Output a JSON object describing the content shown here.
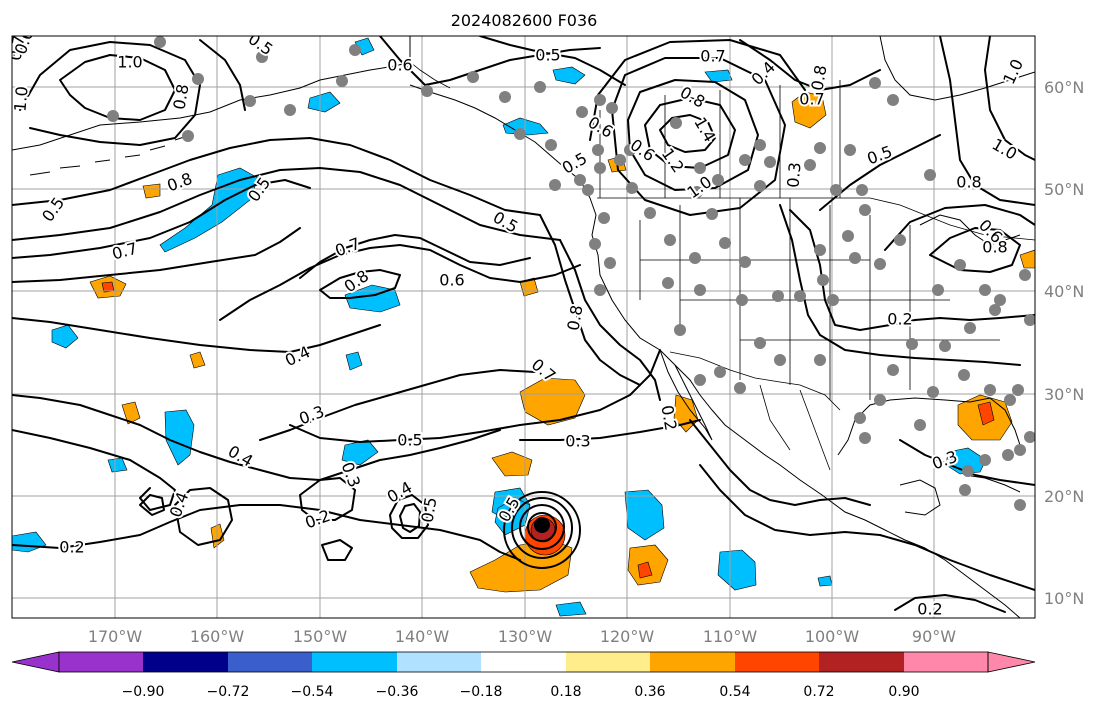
{
  "title": "2024082600 F036",
  "lon_labels": [
    "170°W",
    "160°W",
    "150°W",
    "140°W",
    "130°W",
    "120°W",
    "110°W",
    "100°W",
    "90°W"
  ],
  "lat_labels": [
    "60°N",
    "50°N",
    "40°N",
    "30°N",
    "20°N",
    "10°N"
  ],
  "colorbar": {
    "ticks": [
      "−0.90",
      "−0.72",
      "−0.54",
      "−0.36",
      "−0.18",
      "0.18",
      "0.36",
      "0.54",
      "0.72",
      "0.90"
    ],
    "colors": {
      "under": "#9932cc",
      "bins": [
        "#00008b",
        "#3a5fcd",
        "#00bfff",
        "#b0e2ff",
        "#ffffff",
        "#ffec8b",
        "#ffa500",
        "#ff4500",
        "#b22222"
      ],
      "over": "#ff88aa"
    }
  },
  "contour_labels": [
    {
      "id": "c1",
      "text": "0.5"
    },
    {
      "id": "c2",
      "text": "0.7"
    },
    {
      "id": "c3",
      "text": "0.8"
    },
    {
      "id": "c4",
      "text": "0.6"
    },
    {
      "id": "c5",
      "text": "0.4"
    },
    {
      "id": "c6",
      "text": "0.3"
    },
    {
      "id": "c7",
      "text": "0.5"
    },
    {
      "id": "c8",
      "text": "0.3"
    },
    {
      "id": "c9",
      "text": "0.2"
    },
    {
      "id": "c10",
      "text": "0.4"
    },
    {
      "id": "c11",
      "text": "0.2"
    },
    {
      "id": "c12",
      "text": "0.8"
    },
    {
      "id": "c13",
      "text": "0.7"
    },
    {
      "id": "c14",
      "text": "0.5"
    },
    {
      "id": "c15",
      "text": "0.8"
    },
    {
      "id": "c16",
      "text": "1.0"
    },
    {
      "id": "c17",
      "text": "0.8"
    },
    {
      "id": "c18",
      "text": "0.6"
    },
    {
      "id": "c19",
      "text": "0.5"
    },
    {
      "id": "c20",
      "text": "0.2"
    },
    {
      "id": "c21",
      "text": "0.3"
    },
    {
      "id": "c22",
      "text": "0.6"
    },
    {
      "id": "c23",
      "text": "0.8"
    },
    {
      "id": "c24",
      "text": "0.5"
    },
    {
      "id": "c25",
      "text": "0.7"
    },
    {
      "id": "c26",
      "text": "1.0"
    },
    {
      "id": "c27",
      "text": "0.6"
    },
    {
      "id": "c28",
      "text": "0.7"
    },
    {
      "id": "c29",
      "text": "0.4"
    },
    {
      "id": "c30",
      "text": "0.5"
    },
    {
      "id": "c31",
      "text": "1.0"
    },
    {
      "id": "c32",
      "text": "0.5"
    },
    {
      "id": "c33",
      "text": "0.8"
    },
    {
      "id": "c34",
      "text": "1.4"
    },
    {
      "id": "c35",
      "text": "1.2"
    },
    {
      "id": "c36",
      "text": "0.6"
    },
    {
      "id": "c37",
      "text": "0.4"
    },
    {
      "id": "c38",
      "text": "1.0"
    },
    {
      "id": "c39",
      "text": "1.0"
    },
    {
      "id": "c40",
      "text": "0.7"
    },
    {
      "id": "c41",
      "text": "0.8"
    },
    {
      "id": "c42",
      "text": "0.6"
    },
    {
      "id": "c43",
      "text": "0.5"
    },
    {
      "id": "c44",
      "text": "0.8"
    },
    {
      "id": "c45",
      "text": "0.2"
    },
    {
      "id": "c46",
      "text": "0.7"
    },
    {
      "id": "c47",
      "text": "0.3"
    },
    {
      "id": "c48",
      "text": "0.3"
    },
    {
      "id": "c49",
      "text": "0.2"
    },
    {
      "id": "c50",
      "text": "0.4"
    },
    {
      "id": "c51",
      "text": "0.5"
    },
    {
      "id": "c52",
      "text": "0.5"
    }
  ]
}
